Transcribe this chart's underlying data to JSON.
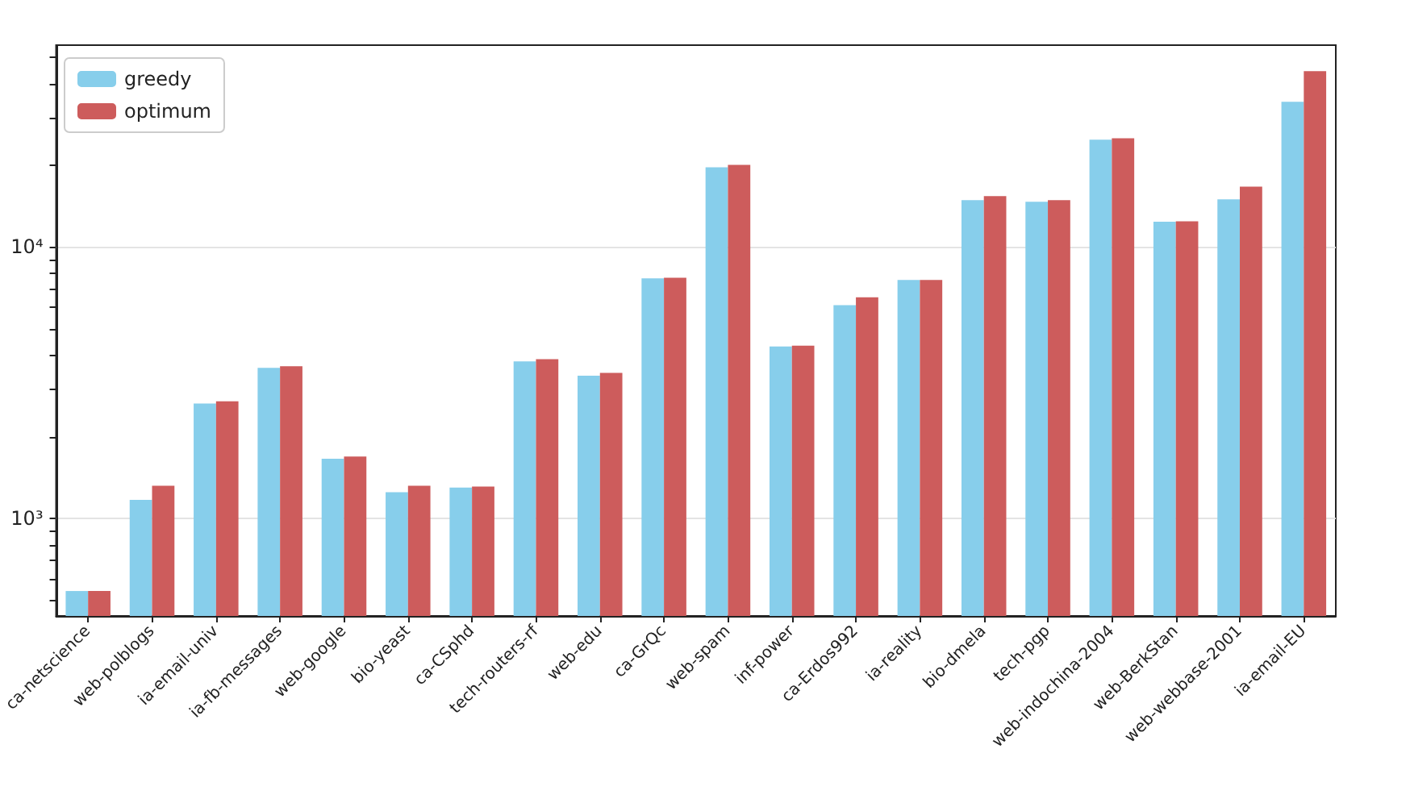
{
  "chart_data": {
    "type": "bar",
    "categories": [
      "ca-netscience",
      "web-polblogs",
      "ia-email-univ",
      "ia-fb-messages",
      "web-google",
      "bio-yeast",
      "ca-CSphd",
      "tech-routers-rf",
      "web-edu",
      "ca-GrQc",
      "web-spam",
      "inf-power",
      "ca-Erdos992",
      "ia-reality",
      "bio-dmela",
      "tech-pgp",
      "web-indochina-2004",
      "web-BerkStan",
      "web-webbase-2001",
      "ia-email-EU"
    ],
    "series": [
      {
        "name": "greedy",
        "color": "#87ceeb",
        "values": [
          540,
          1170,
          2650,
          3590,
          1660,
          1250,
          1300,
          3790,
          3360,
          7670,
          19700,
          4300,
          6110,
          7570,
          14900,
          14700,
          24900,
          12400,
          15000,
          34300
        ]
      },
      {
        "name": "optimum",
        "color": "#cd5c5c",
        "values": [
          540,
          1320,
          2700,
          3640,
          1690,
          1320,
          1310,
          3860,
          3440,
          7710,
          20100,
          4330,
          6530,
          7570,
          15400,
          14900,
          25200,
          12450,
          16700,
          44500
        ]
      }
    ],
    "log": "y",
    "ylim": [
      437,
      55500
    ],
    "yticks": [
      {
        "value": 500,
        "label": null
      },
      {
        "value": 600,
        "label": null
      },
      {
        "value": 700,
        "label": null
      },
      {
        "value": 800,
        "label": null
      },
      {
        "value": 900,
        "label": null
      },
      {
        "value": 1000,
        "label": "10³"
      },
      {
        "value": 2000,
        "label": null
      },
      {
        "value": 3000,
        "label": null
      },
      {
        "value": 4000,
        "label": null
      },
      {
        "value": 5000,
        "label": null
      },
      {
        "value": 6000,
        "label": null
      },
      {
        "value": 7000,
        "label": null
      },
      {
        "value": 8000,
        "label": null
      },
      {
        "value": 9000,
        "label": null
      },
      {
        "value": 10000,
        "label": "10⁴"
      },
      {
        "value": 20000,
        "label": null
      },
      {
        "value": 30000,
        "label": null
      },
      {
        "value": 40000,
        "label": null
      },
      {
        "value": 50000,
        "label": null
      }
    ],
    "grid": "y",
    "legend": "top left"
  }
}
